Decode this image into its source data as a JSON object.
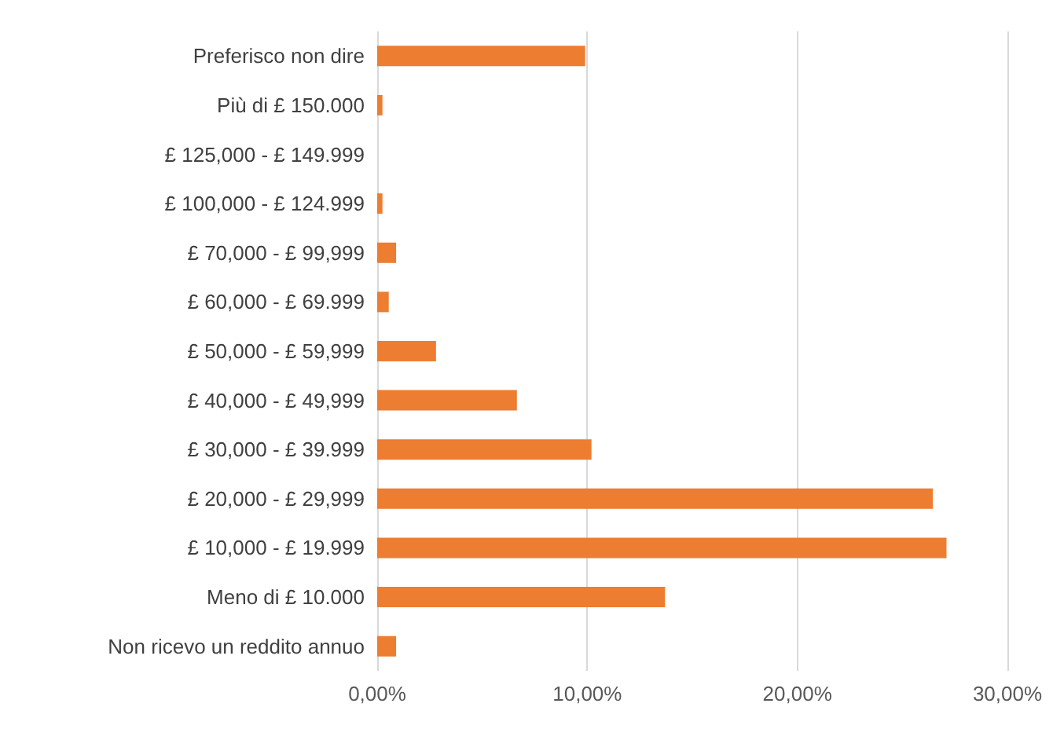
{
  "chart_data": {
    "type": "bar",
    "orientation": "horizontal",
    "categories": [
      "Preferisco non dire",
      "Più di £ 150.000",
      "£ 125,000 - £ 149.999",
      "£ 100,000 - £ 124.999",
      "£ 70,000 - £ 99,999",
      "£ 60,000 - £ 69.999",
      "£ 50,000 - £ 59,999",
      "£ 40,000 - £ 49,999",
      "£ 30,000 - £ 39.999",
      "£ 20,000 - £ 29,999",
      "£ 10,000 - £ 19.999",
      "Meno di £ 10.000",
      "Non ricevo un reddito annuo"
    ],
    "values": [
      9.9,
      0.25,
      0,
      0.25,
      0.9,
      0.55,
      2.8,
      6.65,
      10.2,
      26.45,
      27.1,
      13.7,
      0.9
    ],
    "color": "#ed7d31",
    "xlim": [
      0,
      30
    ],
    "xticks": [
      {
        "value": 0,
        "label": "0,00%"
      },
      {
        "value": 10,
        "label": "10,00%"
      },
      {
        "value": 20,
        "label": "20,00%"
      },
      {
        "value": 30,
        "label": "30,00%"
      }
    ],
    "grid": "x"
  }
}
